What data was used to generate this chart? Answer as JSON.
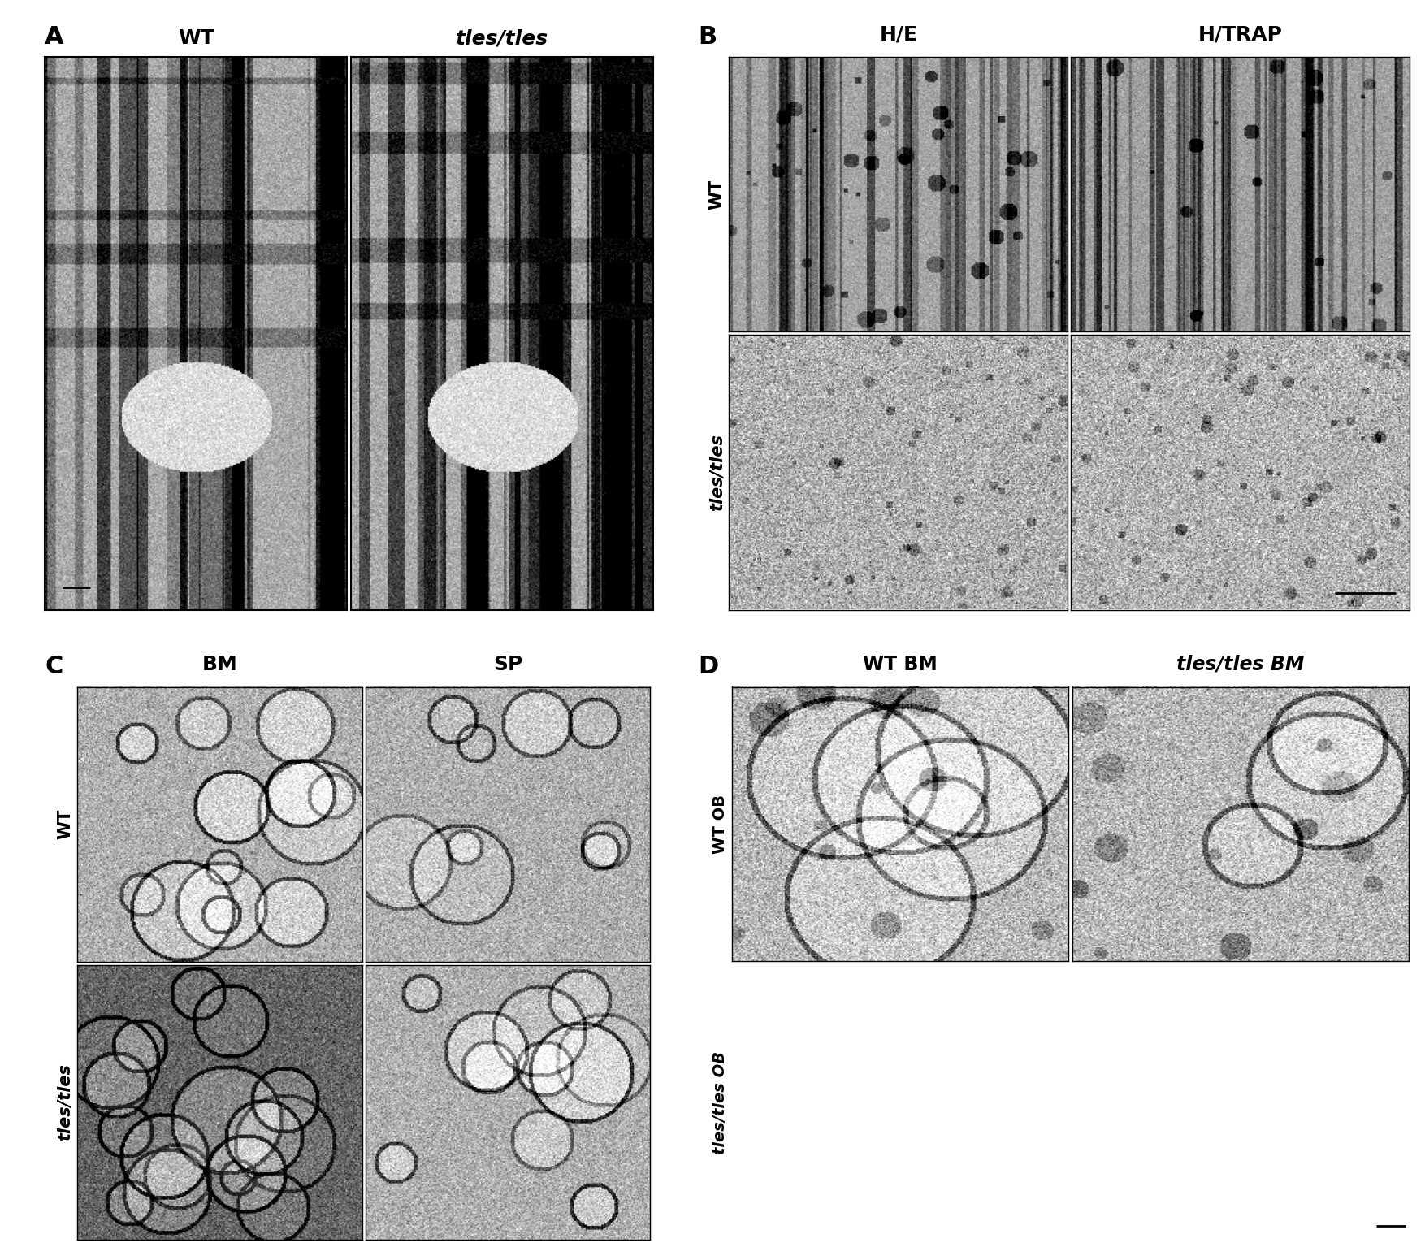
{
  "background_color": "#ffffff",
  "fig_width": 17.54,
  "fig_height": 15.51,
  "panel_A": {
    "label": "A",
    "col_labels": [
      "WT",
      "tles/tles"
    ],
    "col_labels_italic": [
      false,
      true
    ]
  },
  "panel_B": {
    "label": "B",
    "col_labels": [
      "H/E",
      "H/TRAP"
    ],
    "row_labels": [
      "WT",
      "tles/tles"
    ],
    "row_labels_italic": [
      false,
      true
    ]
  },
  "panel_C": {
    "label": "C",
    "col_labels": [
      "BM",
      "SP"
    ],
    "row_labels": [
      "WT",
      "tles/tles"
    ],
    "row_labels_italic": [
      false,
      true
    ]
  },
  "panel_D": {
    "label": "D",
    "col_labels": [
      "WT BM",
      "tles/tles BM"
    ],
    "col_labels_italic": [
      false,
      true
    ],
    "row_labels": [
      "WT OB",
      "tles/tles OB"
    ],
    "row_labels_italic": [
      false,
      true
    ]
  },
  "label_fontsize": 22,
  "title_fontsize": 18,
  "row_label_fontsize": 15
}
